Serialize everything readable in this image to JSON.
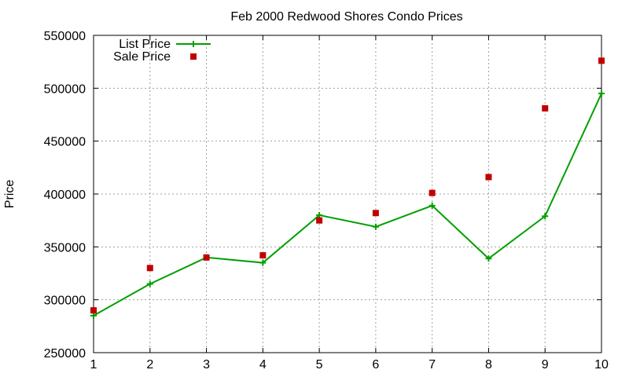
{
  "chart_data": {
    "type": "line",
    "title": "Feb 2000 Redwood Shores Condo Prices",
    "xlabel": "",
    "ylabel": "Price",
    "x": [
      1,
      2,
      3,
      4,
      5,
      6,
      7,
      8,
      9,
      10
    ],
    "xlim": [
      1,
      10
    ],
    "ylim": [
      250000,
      550000
    ],
    "xticks": [
      "1",
      "2",
      "3",
      "4",
      "5",
      "6",
      "7",
      "8",
      "9",
      "10"
    ],
    "yticks": [
      "250000",
      "300000",
      "350000",
      "400000",
      "450000",
      "500000",
      "550000"
    ],
    "grid": true,
    "legend_position": "top-left",
    "series": [
      {
        "name": "List Price",
        "style": "line-with-plus-markers",
        "color": "#00a000",
        "values": [
          285000,
          315000,
          340000,
          335000,
          380000,
          369000,
          389000,
          339000,
          379000,
          495000
        ]
      },
      {
        "name": "Sale Price",
        "style": "square-markers",
        "color": "#c00000",
        "values": [
          290000,
          330000,
          340000,
          342000,
          375000,
          382000,
          401000,
          416000,
          481000,
          526000
        ]
      }
    ]
  }
}
